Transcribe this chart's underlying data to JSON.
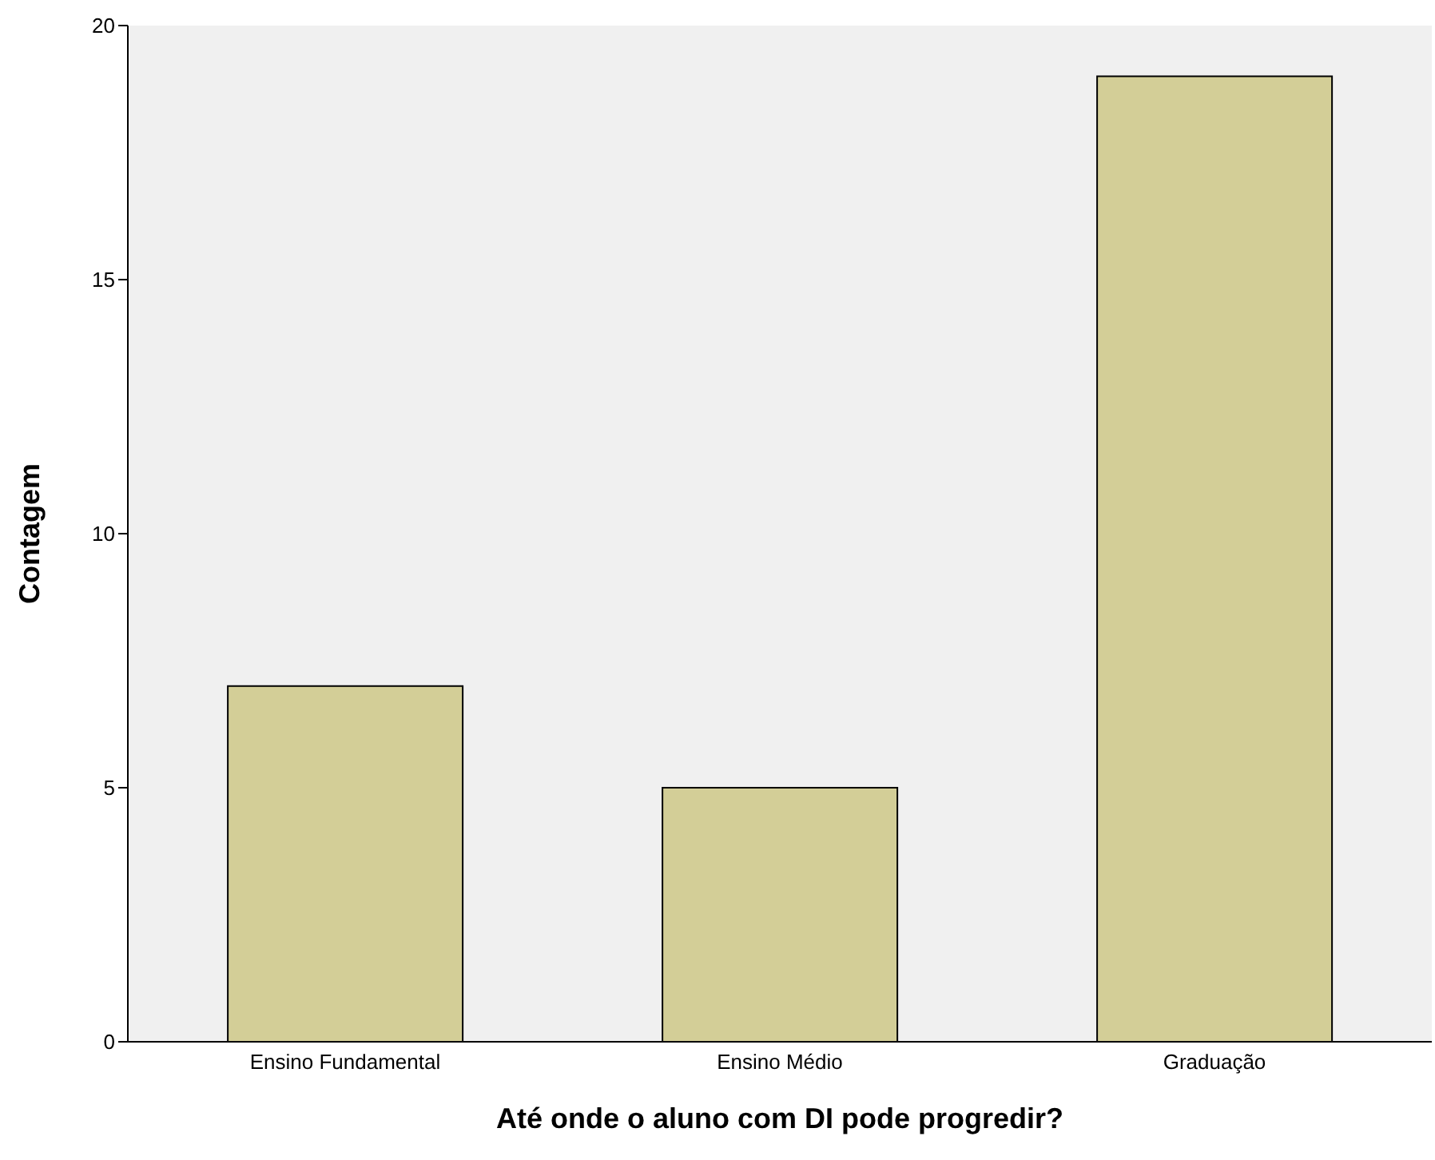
{
  "chart_data": {
    "type": "bar",
    "xlabel": "Até onde o aluno com DI pode progredir?",
    "ylabel": "Contagem",
    "categories": [
      "Ensino Fundamental",
      "Ensino Médio",
      "Graduação"
    ],
    "values": [
      7,
      5,
      19
    ],
    "color": "#d3ce97",
    "ylim": [
      0,
      20
    ],
    "yticks": [
      0,
      5,
      10,
      15,
      20
    ],
    "grid": false
  }
}
